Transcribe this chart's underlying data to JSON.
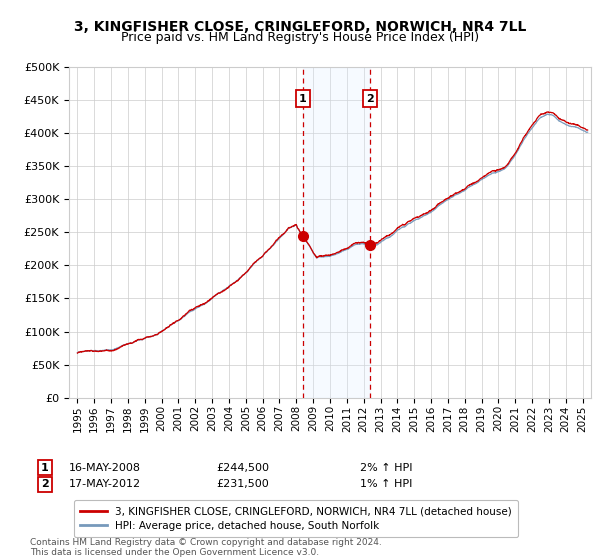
{
  "title": "3, KINGFISHER CLOSE, CRINGLEFORD, NORWICH, NR4 7LL",
  "subtitle": "Price paid vs. HM Land Registry's House Price Index (HPI)",
  "legend_line1": "3, KINGFISHER CLOSE, CRINGLEFORD, NORWICH, NR4 7LL (detached house)",
  "legend_line2": "HPI: Average price, detached house, South Norfolk",
  "annotation1_label": "1",
  "annotation1_date": "16-MAY-2008",
  "annotation1_price": "£244,500",
  "annotation1_hpi": "2% ↑ HPI",
  "annotation2_label": "2",
  "annotation2_date": "17-MAY-2012",
  "annotation2_price": "£231,500",
  "annotation2_hpi": "1% ↑ HPI",
  "footnote": "Contains HM Land Registry data © Crown copyright and database right 2024.\nThis data is licensed under the Open Government Licence v3.0.",
  "marker1_x": 2008.37,
  "marker1_y": 244500,
  "marker2_x": 2012.37,
  "marker2_y": 231500,
  "vline1_x": 2008.37,
  "vline2_x": 2012.37,
  "shade_x1": 2008.37,
  "shade_x2": 2012.37,
  "ylim": [
    0,
    500000
  ],
  "xlim": [
    1994.5,
    2025.5
  ],
  "line_color_red": "#cc0000",
  "line_color_blue": "#7799bb",
  "marker_color": "#cc0000",
  "shade_color": "#ddeeff",
  "vline_color": "#cc0000",
  "grid_color": "#cccccc",
  "bg_color": "#ffffff",
  "title_fontsize": 10,
  "subtitle_fontsize": 9,
  "key_t": [
    1995,
    1996,
    1997,
    1998,
    1999,
    2000,
    2001,
    2002,
    2003,
    2004,
    2005,
    2006,
    2007,
    2007.5,
    2008.0,
    2008.37,
    2008.8,
    2009.2,
    2009.8,
    2010.5,
    2011.0,
    2011.5,
    2012.0,
    2012.37,
    2012.8,
    2013.5,
    2014,
    2015,
    2016,
    2017,
    2018,
    2019,
    2020,
    2020.5,
    2021,
    2021.5,
    2022,
    2022.5,
    2022.9,
    2023.3,
    2023.8,
    2024.3,
    2024.8,
    2025.2
  ],
  "key_v": [
    65000,
    68000,
    72000,
    80000,
    90000,
    103000,
    118000,
    135000,
    152000,
    172000,
    190000,
    215000,
    240000,
    255000,
    262000,
    244500,
    230000,
    213000,
    215000,
    222000,
    228000,
    235000,
    238000,
    231500,
    235000,
    245000,
    255000,
    268000,
    280000,
    296000,
    312000,
    328000,
    342000,
    350000,
    368000,
    390000,
    408000,
    425000,
    432000,
    428000,
    418000,
    413000,
    408000,
    403000
  ]
}
